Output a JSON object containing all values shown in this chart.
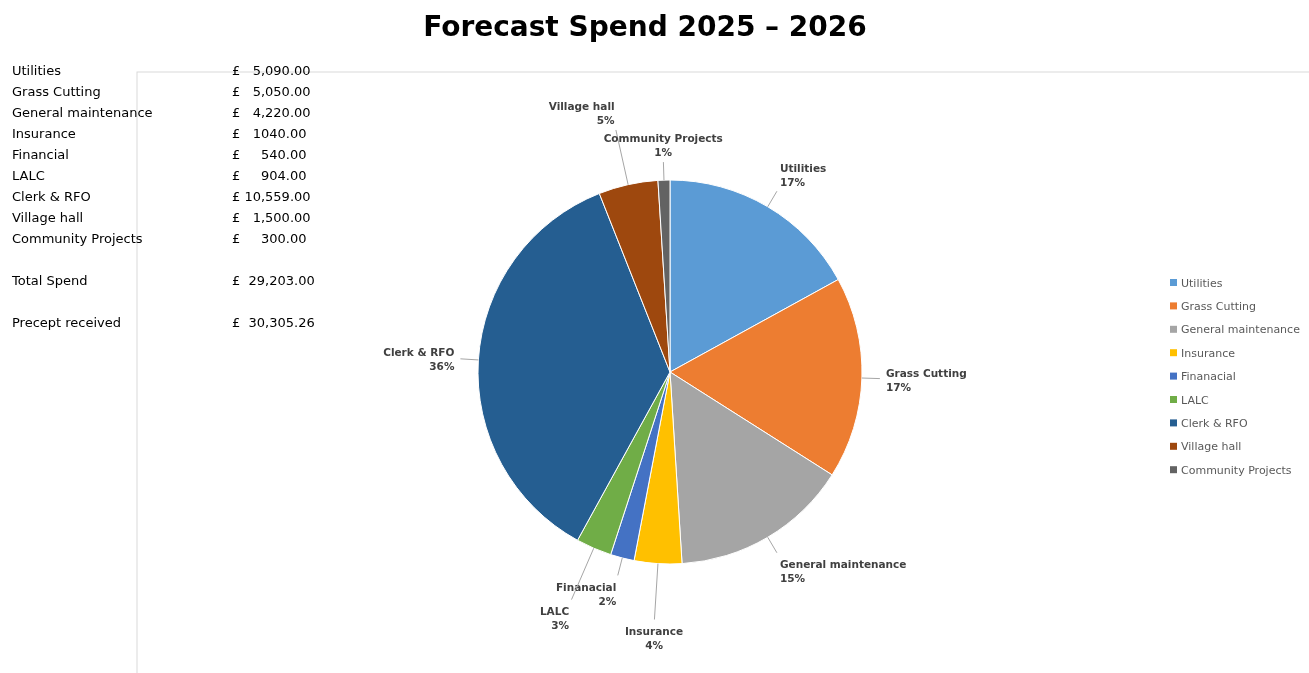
{
  "chart_data": {
    "type": "pie",
    "title": "Forecast Spend 2025 – 2026",
    "categories": [
      "Utilities",
      "Grass Cutting",
      "General maintenance",
      "Insurance",
      "Finanacial",
      "LALC",
      "Clerk & RFO",
      "Village hall",
      "Community Projects"
    ],
    "values": [
      17,
      17,
      15,
      4,
      2,
      3,
      36,
      5,
      1
    ],
    "value_labels": [
      "17%",
      "17%",
      "15%",
      "4%",
      "2%",
      "3%",
      "36%",
      "5%",
      "1%"
    ],
    "colors": [
      "#5b9bd5",
      "#ed7d31",
      "#a5a5a5",
      "#ffc000",
      "#4472c4",
      "#70ad47",
      "#255e91",
      "#9e480e",
      "#636363"
    ],
    "legend": "right",
    "annotations": [
      "Utilities",
      "£   5,090.00",
      "Grass Cutting",
      "£   5,050.00",
      "General maintenance",
      "£   4,220.00",
      "Insurance",
      "£   1040.00",
      "Financial",
      "£     540.00",
      "LALC",
      "£     904.00",
      "Clerk & RFO",
      "£ 10,559.00",
      "Village hall",
      "£   1,500.00",
      "Community Projects",
      "£     300.00",
      "Total Spend",
      "£  29,203.00",
      "Precept received",
      "£  30,305.26"
    ]
  }
}
